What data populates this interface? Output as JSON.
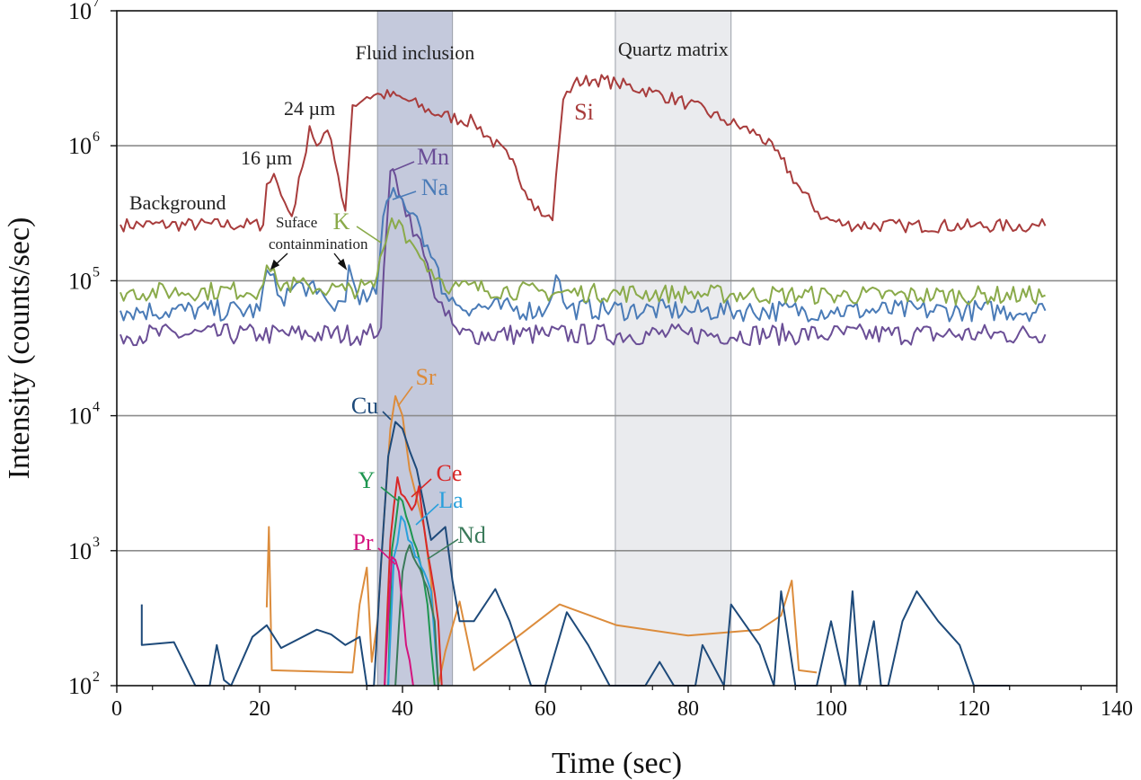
{
  "chart_data": {
    "type": "line",
    "xlabel": "Time (sec)",
    "ylabel": "Intensity (counts/sec)",
    "xlim": [
      0,
      140
    ],
    "ylim": [
      100,
      10000000
    ],
    "yscale": "log",
    "grid": "horizontal",
    "x_ticks": [
      "0",
      "20",
      "40",
      "60",
      "80",
      "100",
      "120",
      "140"
    ],
    "y_ticks": [
      {
        "base": "10",
        "exp": "2"
      },
      {
        "base": "10",
        "exp": "3"
      },
      {
        "base": "10",
        "exp": "4"
      },
      {
        "base": "10",
        "exp": "5"
      },
      {
        "base": "10",
        "exp": "6"
      },
      {
        "base": "10",
        "exp": "7"
      }
    ],
    "regions": [
      {
        "label": "Fluid inclusion",
        "x0": 36.5,
        "x1": 47,
        "color": "#c4c9dc"
      },
      {
        "label": "Quartz matrix",
        "x0": 69.8,
        "x1": 86,
        "color": "#eaebee"
      }
    ],
    "annotations": [
      "Background",
      "16 µm",
      "24 µm",
      "Suface",
      "containmination"
    ],
    "series": [
      {
        "name": "Si",
        "color": "#a83c3c",
        "label_color": "#a83c3c",
        "points": [
          [
            0.5,
            260000
          ],
          [
            20.5,
            260000
          ],
          [
            21,
            520000
          ],
          [
            22,
            620000
          ],
          [
            23,
            430000
          ],
          [
            24.5,
            300000
          ],
          [
            26,
            700000
          ],
          [
            27,
            1400000
          ],
          [
            28,
            1000000
          ],
          [
            29.5,
            1300000
          ],
          [
            31,
            600000
          ],
          [
            32,
            330000
          ],
          [
            33,
            2000000
          ],
          [
            35,
            2300000
          ],
          [
            37,
            2400000
          ],
          [
            40,
            2250000
          ],
          [
            45,
            1700000
          ],
          [
            50,
            1500000
          ],
          [
            55,
            800000
          ],
          [
            58,
            400000
          ],
          [
            60,
            300000
          ],
          [
            61,
            280000
          ],
          [
            61.5,
            600000
          ],
          [
            62.5,
            2200000
          ],
          [
            64,
            2900000
          ],
          [
            67,
            3100000
          ],
          [
            70,
            2900000
          ],
          [
            75,
            2500000
          ],
          [
            80,
            2050000
          ],
          [
            85,
            1550000
          ],
          [
            90,
            1200000
          ],
          [
            93,
            800000
          ],
          [
            96,
            450000
          ],
          [
            99,
            290000
          ],
          [
            102,
            260000
          ],
          [
            110,
            255000
          ],
          [
            120,
            255000
          ],
          [
            130,
            255000
          ]
        ]
      },
      {
        "name": "Mn",
        "color": "#6a4e96",
        "label_color": "#6a4e96",
        "points": [
          [
            0.5,
            40000
          ],
          [
            20,
            40000
          ],
          [
            35,
            40000
          ],
          [
            37,
            45000
          ],
          [
            37.8,
            250000
          ],
          [
            38.3,
            650000
          ],
          [
            39,
            600000
          ],
          [
            40,
            400000
          ],
          [
            42,
            220000
          ],
          [
            44,
            100000
          ],
          [
            46,
            55000
          ],
          [
            48,
            40000
          ],
          [
            60,
            40000
          ],
          [
            80,
            40000
          ],
          [
            100,
            40000
          ],
          [
            130,
            40000
          ]
        ]
      },
      {
        "name": "Na",
        "color": "#4a7bb7",
        "label_color": "#4a7bb7",
        "points": [
          [
            0.5,
            60000
          ],
          [
            20,
            60000
          ],
          [
            21,
            120000
          ],
          [
            23,
            75000
          ],
          [
            26,
            95000
          ],
          [
            28,
            80000
          ],
          [
            30,
            65000
          ],
          [
            32,
            70000
          ],
          [
            32.5,
            130000
          ],
          [
            33.5,
            85000
          ],
          [
            35,
            70000
          ],
          [
            36.3,
            80000
          ],
          [
            37.3,
            300000
          ],
          [
            38.3,
            420000
          ],
          [
            40,
            400000
          ],
          [
            42,
            300000
          ],
          [
            44,
            150000
          ],
          [
            46,
            80000
          ],
          [
            48,
            65000
          ],
          [
            60,
            60000
          ],
          [
            61.5,
            110000
          ],
          [
            63,
            62000
          ],
          [
            80,
            60000
          ],
          [
            100,
            60000
          ],
          [
            130,
            60000
          ]
        ]
      },
      {
        "name": "K",
        "color": "#8aaa4a",
        "label_color": "#8aaa4a",
        "points": [
          [
            0.5,
            82000
          ],
          [
            20,
            85000
          ],
          [
            21,
            130000
          ],
          [
            22.5,
            95000
          ],
          [
            27,
            90000
          ],
          [
            32,
            85000
          ],
          [
            36,
            90000
          ],
          [
            37.3,
            170000
          ],
          [
            38.5,
            290000
          ],
          [
            39.5,
            280000
          ],
          [
            41,
            200000
          ],
          [
            43,
            140000
          ],
          [
            45,
            105000
          ],
          [
            47,
            90000
          ],
          [
            60,
            82000
          ],
          [
            80,
            80000
          ],
          [
            100,
            78000
          ],
          [
            130,
            78000
          ]
        ]
      },
      {
        "name": "Sr",
        "color": "#dc8c3c",
        "label_color": "#dc8c3c",
        "points": [
          [
            21,
            380
          ],
          [
            21.3,
            1500
          ],
          [
            21.7,
            130
          ],
          [
            33,
            125
          ],
          [
            34,
            400
          ],
          [
            35,
            750
          ],
          [
            35.7,
            150
          ],
          [
            36.5,
            300
          ],
          [
            37.5,
            2000
          ],
          [
            38.3,
            8000
          ],
          [
            39,
            14000
          ],
          [
            40,
            10000
          ],
          [
            41,
            4000
          ],
          [
            43,
            1500
          ],
          [
            44,
            600
          ],
          [
            45,
            100
          ],
          [
            46,
            180
          ],
          [
            48,
            420
          ],
          [
            50,
            130
          ],
          [
            62,
            400
          ],
          [
            70,
            280
          ],
          [
            80,
            235
          ],
          [
            90,
            260
          ],
          [
            93,
            330
          ],
          [
            94.5,
            600
          ],
          [
            95.5,
            130
          ],
          [
            98,
            125
          ]
        ]
      },
      {
        "name": "Cu",
        "color": "#1e4a7a",
        "label_color": "#1e4a7a",
        "points": [
          [
            3.5,
            400
          ],
          [
            3.5,
            200
          ],
          [
            8,
            210
          ],
          [
            11,
            100
          ],
          [
            13,
            100
          ],
          [
            14,
            200
          ],
          [
            15,
            110
          ],
          [
            16,
            100
          ],
          [
            19,
            230
          ],
          [
            21,
            280
          ],
          [
            23,
            190
          ],
          [
            28,
            260
          ],
          [
            30,
            240
          ],
          [
            32,
            200
          ],
          [
            34,
            230
          ],
          [
            35,
            100
          ],
          [
            36,
            100
          ],
          [
            37,
            800
          ],
          [
            38,
            5000
          ],
          [
            39,
            9000
          ],
          [
            40,
            8000
          ],
          [
            41,
            5500
          ],
          [
            42,
            4000
          ],
          [
            44,
            1200
          ],
          [
            46,
            1500
          ],
          [
            47,
            600
          ],
          [
            48,
            300
          ],
          [
            50,
            300
          ],
          [
            53,
            520
          ],
          [
            55,
            300
          ],
          [
            58,
            100
          ],
          [
            60,
            100
          ],
          [
            63,
            350
          ],
          [
            66,
            200
          ],
          [
            69,
            100
          ],
          [
            74,
            100
          ],
          [
            76,
            150
          ],
          [
            78,
            100
          ],
          [
            81,
            100
          ],
          [
            82,
            200
          ],
          [
            85,
            100
          ],
          [
            86,
            400
          ],
          [
            90,
            200
          ],
          [
            92,
            100
          ],
          [
            93,
            500
          ],
          [
            95,
            100
          ],
          [
            98,
            100
          ],
          [
            100,
            300
          ],
          [
            102,
            100
          ],
          [
            103,
            500
          ],
          [
            104,
            100
          ],
          [
            106,
            300
          ],
          [
            107,
            100
          ],
          [
            108,
            100
          ],
          [
            110,
            300
          ],
          [
            112,
            500
          ],
          [
            115,
            300
          ],
          [
            118,
            200
          ],
          [
            120,
            100
          ],
          [
            125,
            100
          ]
        ]
      },
      {
        "name": "Y",
        "color": "#1e9650",
        "label_color": "#1e9650",
        "points": [
          [
            38,
            100
          ],
          [
            38.5,
            1000
          ],
          [
            39.5,
            2500
          ],
          [
            40.5,
            1800
          ],
          [
            41.5,
            1200
          ],
          [
            42.5,
            800
          ],
          [
            43.5,
            400
          ],
          [
            44.5,
            100
          ]
        ]
      },
      {
        "name": "Ce",
        "color": "#d82828",
        "label_color": "#d82828",
        "points": [
          [
            37.5,
            100
          ],
          [
            38.3,
            1200
          ],
          [
            39.3,
            3500
          ],
          [
            40.3,
            2500
          ],
          [
            41.3,
            2000
          ],
          [
            42.3,
            3000
          ],
          [
            43,
            1500
          ],
          [
            44,
            700
          ],
          [
            45,
            300
          ],
          [
            45.5,
            100
          ]
        ]
      },
      {
        "name": "La",
        "color": "#2aa0dc",
        "label_color": "#2aa0dc",
        "points": [
          [
            38,
            100
          ],
          [
            38.8,
            900
          ],
          [
            39.8,
            1800
          ],
          [
            40.8,
            1200
          ],
          [
            41.8,
            900
          ],
          [
            43,
            700
          ],
          [
            44,
            500
          ],
          [
            45,
            100
          ]
        ]
      },
      {
        "name": "Nd",
        "color": "#3a7a5a",
        "label_color": "#3a7a5a",
        "points": [
          [
            39,
            100
          ],
          [
            40,
            700
          ],
          [
            41,
            1100
          ],
          [
            42,
            800
          ],
          [
            43,
            600
          ],
          [
            44.5,
            300
          ],
          [
            45,
            100
          ]
        ]
      },
      {
        "name": "Pr",
        "color": "#d4147f",
        "label_color": "#d4147f",
        "points": [
          [
            37.5,
            100
          ],
          [
            38.5,
            900
          ],
          [
            39.5,
            700
          ],
          [
            40.5,
            200
          ],
          [
            41.5,
            100
          ]
        ]
      }
    ]
  }
}
